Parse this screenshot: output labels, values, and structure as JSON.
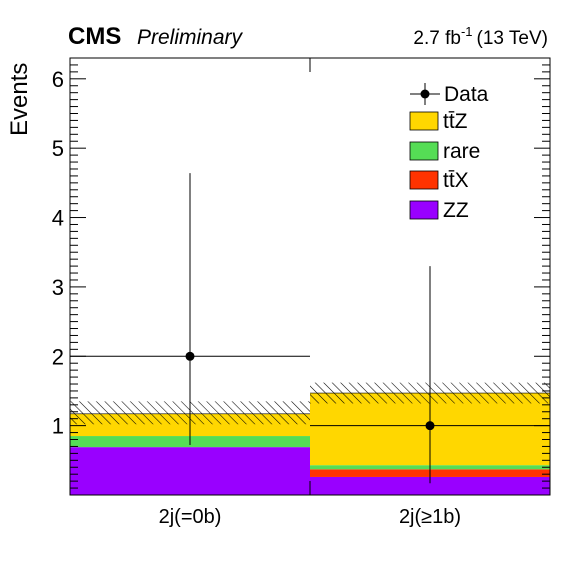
{
  "header": {
    "experiment": "CMS",
    "status": "Preliminary",
    "lumi_prefix": "2.7 fb",
    "lumi_exp": "-1",
    "energy": "(13 TeV)"
  },
  "chart_data": {
    "type": "bar",
    "stacked": true,
    "ylabel": "Events",
    "xlabel": "",
    "ylim": [
      0,
      6.3
    ],
    "yticks": [
      "1",
      "2",
      "3",
      "4",
      "5",
      "6"
    ],
    "categories": [
      "2j(=0b)",
      "2j(≥1b)"
    ],
    "series": [
      {
        "name": "ZZ",
        "color": "#9900ff",
        "values": [
          0.69,
          0.26
        ]
      },
      {
        "name": "tt̄X",
        "color": "#ff3300",
        "values": [
          0.0,
          0.11
        ]
      },
      {
        "name": "rare",
        "color": "#55dd55",
        "values": [
          0.16,
          0.06
        ]
      },
      {
        "name": "tt̄Z",
        "color": "#ffd700",
        "values": [
          0.32,
          1.04
        ]
      }
    ],
    "uncertainty_band": [
      [
        1.02,
        1.35
      ],
      [
        1.32,
        1.62
      ]
    ],
    "data": {
      "name": "Data",
      "values": [
        2,
        1
      ],
      "err_low": [
        1.28,
        0.83
      ],
      "err_high": [
        2.64,
        2.3
      ]
    },
    "legend": {
      "placement": "top-right",
      "entries": [
        {
          "label": "Data",
          "marker": "point"
        },
        {
          "label": "tt̄Z",
          "color": "#ffd700"
        },
        {
          "label": "rare",
          "color": "#55dd55"
        },
        {
          "label": "tt̄X",
          "color": "#ff3300"
        },
        {
          "label": "ZZ",
          "color": "#9900ff"
        }
      ]
    }
  }
}
